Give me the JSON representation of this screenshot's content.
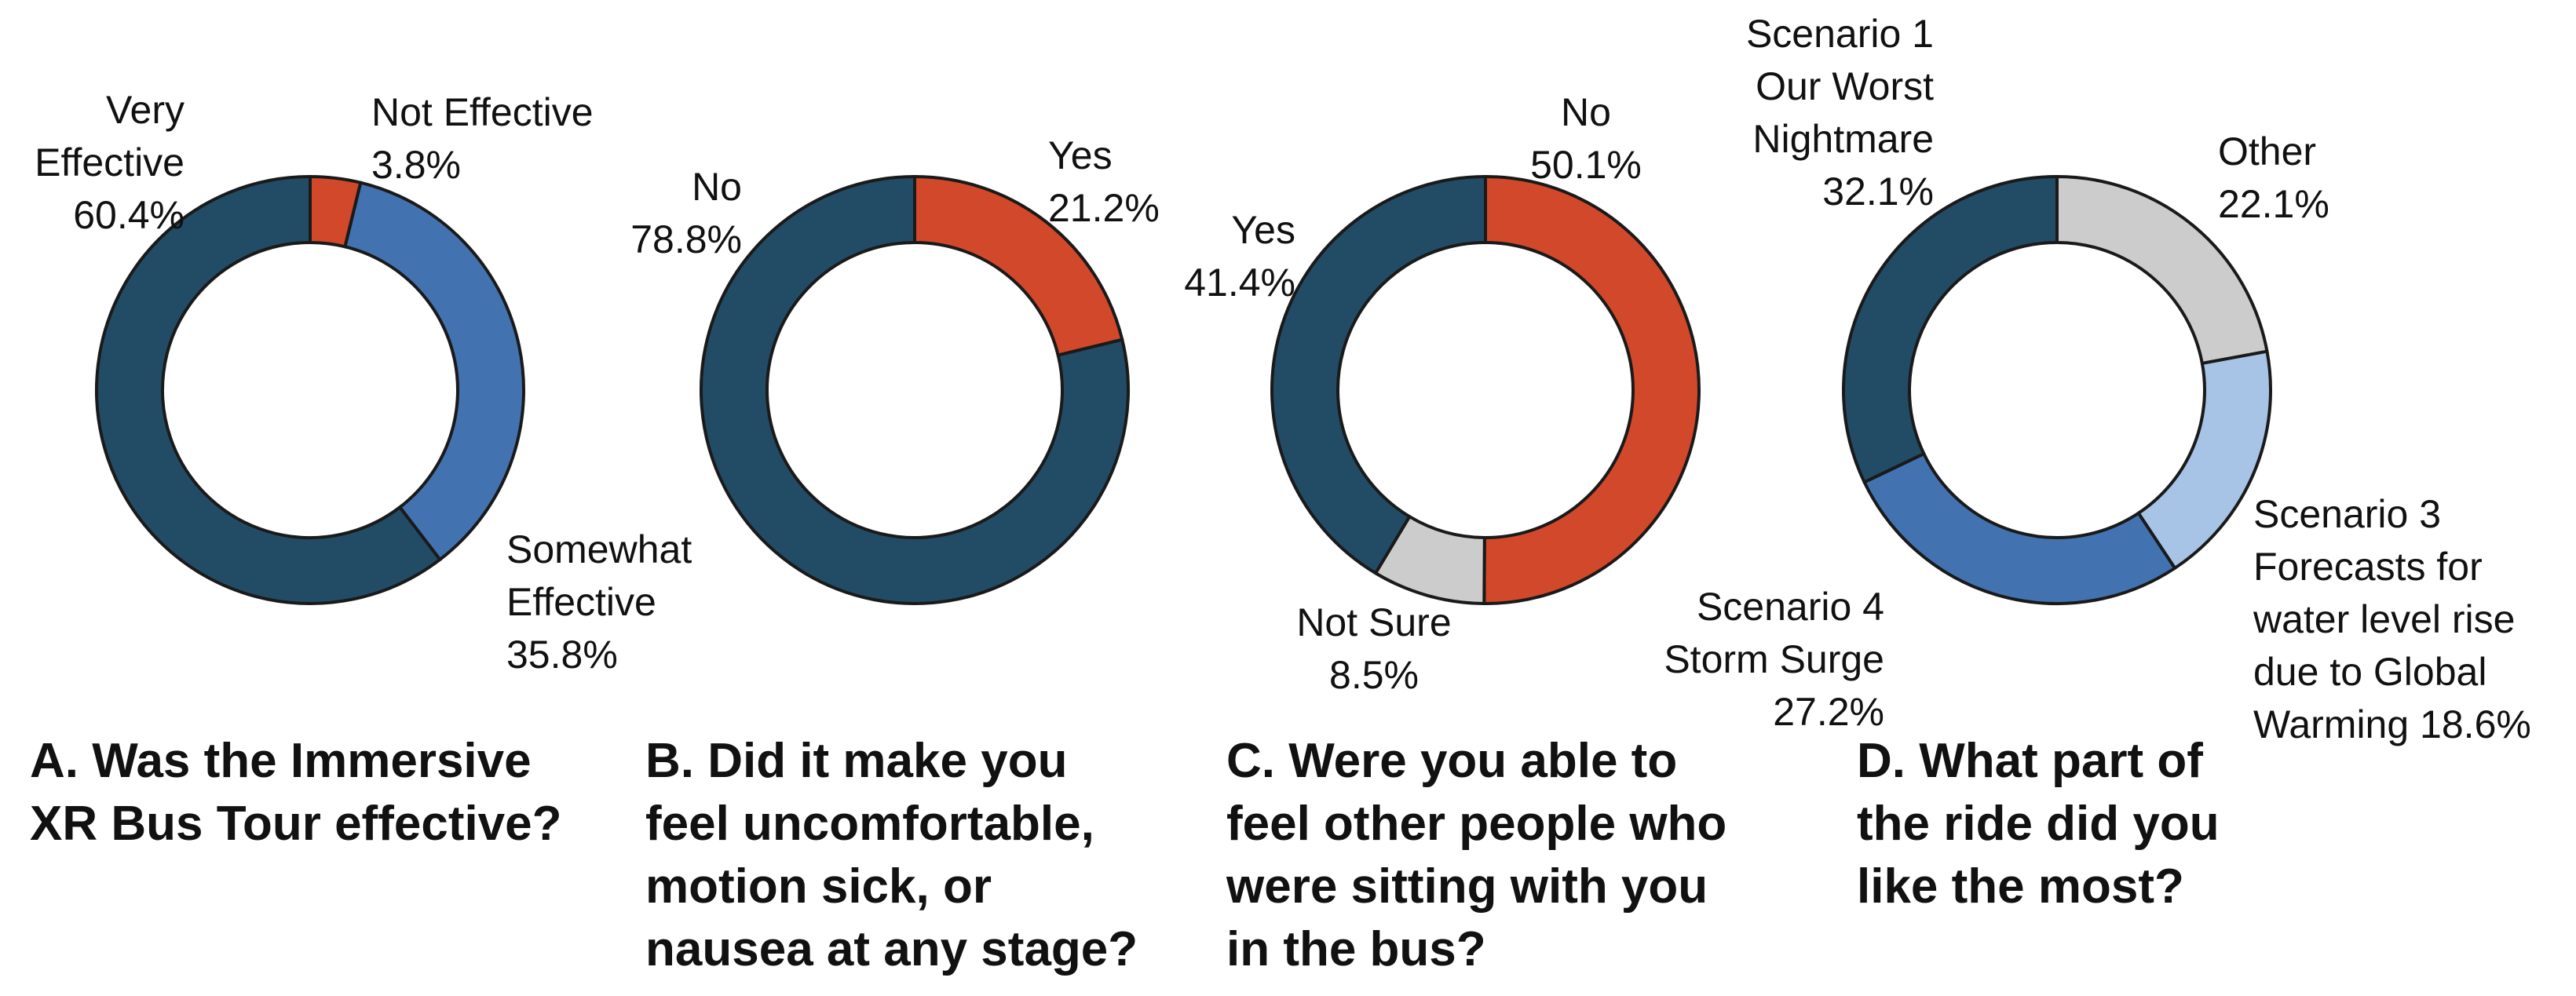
{
  "chart_data": [
    {
      "type": "pie",
      "variant": "donut",
      "title": [
        "A. Was the Immersive",
        "XR Bus Tour effective?"
      ],
      "slices": [
        {
          "label": [
            "Not Effective",
            "3.8%"
          ],
          "value": 3.8,
          "color": "#d2482a"
        },
        {
          "label": [
            "Somewhat",
            "Effective",
            "35.8%"
          ],
          "value": 35.8,
          "color": "#4272b0"
        },
        {
          "label": [
            "Very",
            "Effective",
            "60.4%"
          ],
          "value": 60.4,
          "color": "#224b66"
        }
      ]
    },
    {
      "type": "pie",
      "variant": "donut",
      "title": [
        "B. Did it make you",
        "feel uncomfortable,",
        "motion sick, or",
        "nausea at any stage?"
      ],
      "slices": [
        {
          "label": [
            "Yes",
            "21.2%"
          ],
          "value": 21.2,
          "color": "#d2482a"
        },
        {
          "label": [
            "No",
            "78.8%"
          ],
          "value": 78.8,
          "color": "#224b66"
        }
      ]
    },
    {
      "type": "pie",
      "variant": "donut",
      "title": [
        "C. Were you able to",
        "feel other people who",
        "were sitting with you",
        "in the bus?"
      ],
      "slices": [
        {
          "label": [
            "No",
            "50.1%"
          ],
          "value": 50.1,
          "color": "#d2482a"
        },
        {
          "label": [
            "Not Sure",
            "8.5%"
          ],
          "value": 8.5,
          "color": "#cccccc"
        },
        {
          "label": [
            "Yes",
            "41.4%"
          ],
          "value": 41.4,
          "color": "#224b66"
        }
      ]
    },
    {
      "type": "pie",
      "variant": "donut",
      "title": [
        "D. What part of",
        "the ride did you",
        "like the most?"
      ],
      "slices": [
        {
          "label": [
            "Other",
            "22.1%"
          ],
          "value": 22.1,
          "color": "#cccccc"
        },
        {
          "label": [
            "Scenario 3",
            "Forecasts for",
            "water level rise",
            "due to Global",
            "Warming 18.6%"
          ],
          "value": 18.6,
          "color": "#a7c3e6"
        },
        {
          "label": [
            "Scenario 4",
            "Storm Surge",
            "27.2%"
          ],
          "value": 27.2,
          "color": "#4272b0"
        },
        {
          "label": [
            "Scenario 1",
            "Our Worst",
            "Nightmare",
            "32.1%"
          ],
          "value": 32.1,
          "color": "#224b66"
        }
      ]
    }
  ]
}
